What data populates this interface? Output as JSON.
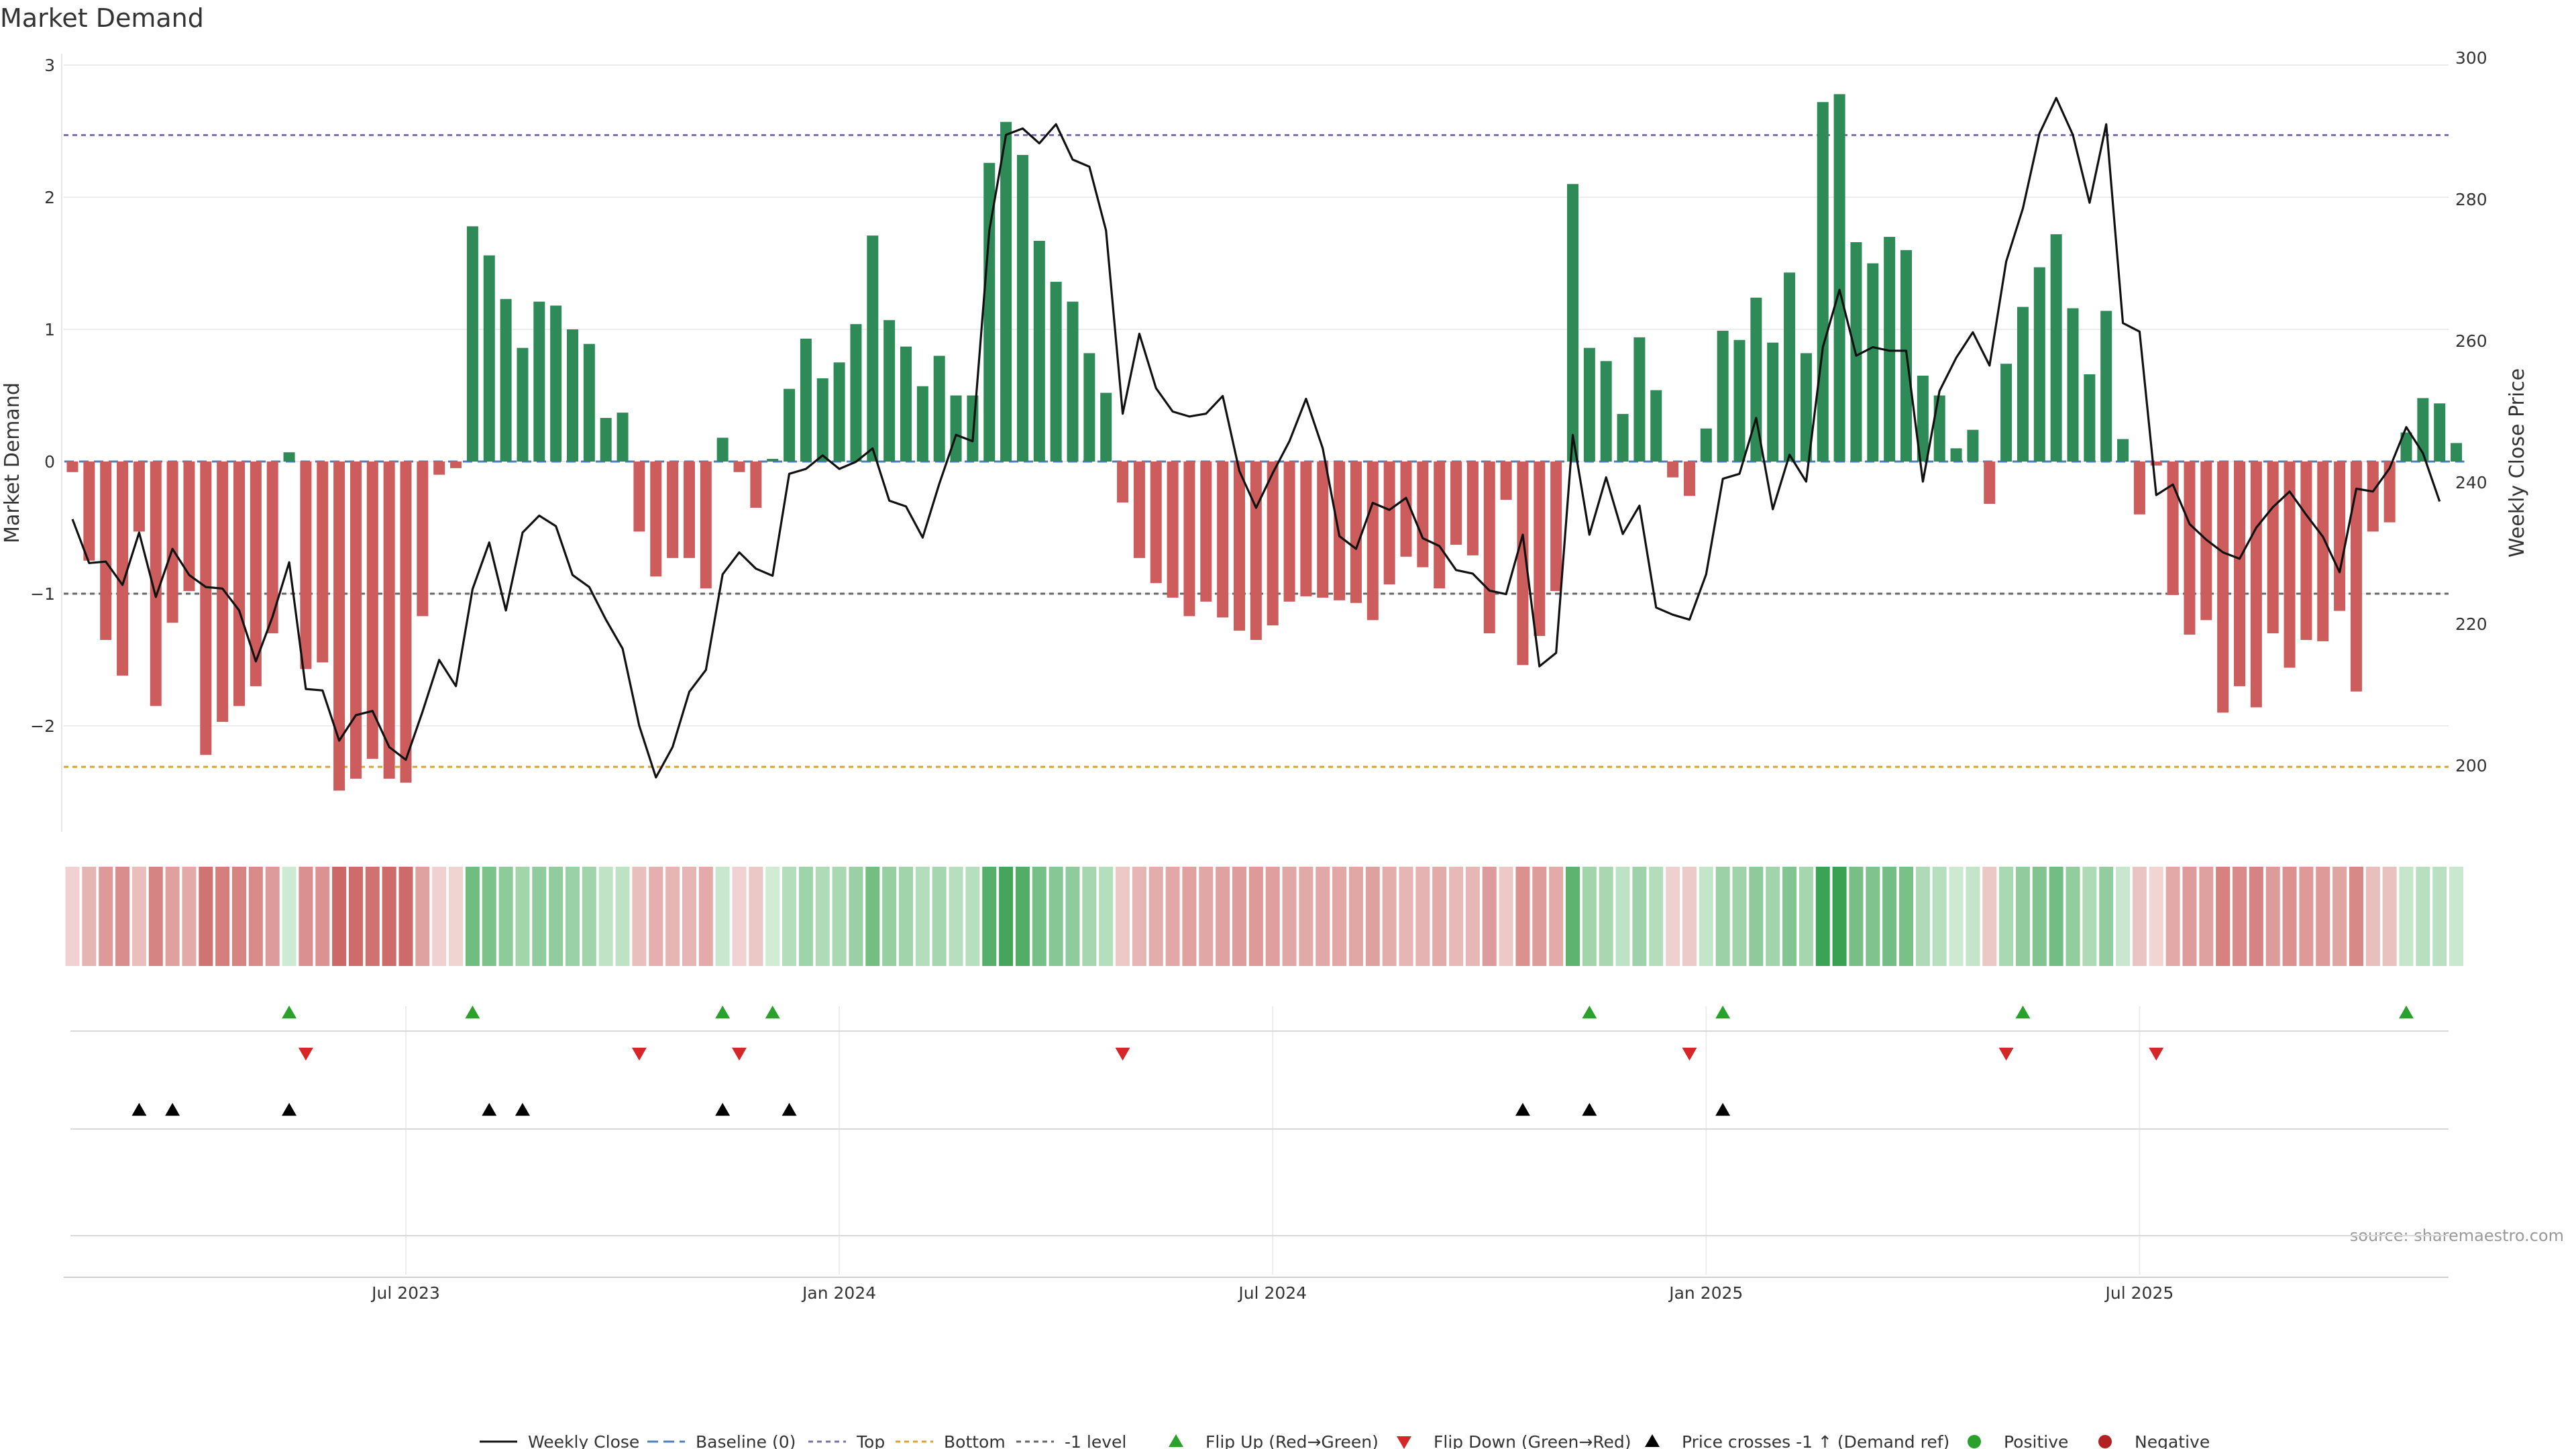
{
  "chart_data": {
    "type": "bar",
    "title": "Market Demand",
    "ylabel": "Market Demand",
    "y2label": "Weekly Close Price",
    "source": "source: sharemaestro.com",
    "ylim": [
      -2.78,
      3.0
    ],
    "y2lim": [
      193.5,
      301.0
    ],
    "yticks": [
      3,
      2,
      1,
      0,
      -1,
      -2
    ],
    "ytick_labels": [
      "3",
      "2",
      "1",
      "0",
      "−1",
      "−2"
    ],
    "y2ticks": [
      300,
      280,
      260,
      240,
      220,
      200
    ],
    "y2tick_labels": [
      "300",
      "280",
      "260",
      "240",
      "220",
      "200"
    ],
    "xticks": [
      {
        "week": 20,
        "label": "Jul 2023"
      },
      {
        "week": 46,
        "label": "Jan 2024"
      },
      {
        "week": 72,
        "label": "Jul 2024"
      },
      {
        "week": 98,
        "label": "Jan 2025"
      },
      {
        "week": 124,
        "label": "Jul 2025"
      }
    ],
    "reference_lines": {
      "top": 2.47,
      "bottom": -2.31,
      "minus_one": -1.0,
      "baseline": 0
    },
    "colors": {
      "positive": "#2e8b57",
      "negative": "#cd5c5c",
      "close": "#111111",
      "top": "#7b6fa6",
      "bottom": "#e0a030",
      "minus_one": "#666666",
      "baseline": "#4a7fc1",
      "flip_up": "#2ca02c",
      "flip_down": "#d62728",
      "cross": "#000000",
      "positive_dot": "#2ca02c",
      "negative_dot": "#b22222"
    },
    "demand": [
      -0.08,
      -0.75,
      -1.35,
      -1.62,
      -0.53,
      -1.85,
      -1.22,
      -0.98,
      -2.22,
      -1.97,
      -1.85,
      -1.7,
      -1.3,
      0.07,
      -1.57,
      -1.52,
      -2.49,
      -2.4,
      -2.25,
      -2.4,
      -2.43,
      -1.17,
      -0.1,
      -0.05,
      1.78,
      1.56,
      1.23,
      0.86,
      1.21,
      1.18,
      1.0,
      0.89,
      0.33,
      0.37,
      -0.53,
      -0.87,
      -0.73,
      -0.73,
      -0.96,
      0.18,
      -0.08,
      -0.35,
      0.02,
      0.55,
      0.93,
      0.63,
      0.75,
      1.04,
      1.71,
      1.07,
      0.87,
      0.57,
      0.8,
      0.5,
      0.5,
      2.26,
      2.57,
      2.32,
      1.67,
      1.36,
      1.21,
      0.82,
      0.52,
      -0.31,
      -0.73,
      -0.92,
      -1.03,
      -1.17,
      -1.06,
      -1.18,
      -1.28,
      -1.35,
      -1.24,
      -1.06,
      -1.02,
      -1.03,
      -1.05,
      -1.07,
      -1.2,
      -0.93,
      -0.72,
      -0.8,
      -0.96,
      -0.63,
      -0.71,
      -1.3,
      -0.29,
      -1.54,
      -1.32,
      -0.98,
      2.1,
      0.86,
      0.76,
      0.36,
      0.94,
      0.54,
      -0.12,
      -0.26,
      0.25,
      0.99,
      0.92,
      1.24,
      0.9,
      1.43,
      0.82,
      2.72,
      2.78,
      1.66,
      1.5,
      1.7,
      1.6,
      0.65,
      0.5,
      0.1,
      0.24,
      -0.32,
      0.74,
      1.17,
      1.47,
      1.72,
      1.16,
      0.66,
      1.14,
      0.17,
      -0.4,
      -0.03,
      -1.01,
      -1.31,
      -1.2,
      -1.9,
      -1.7,
      -1.86,
      -1.3,
      -1.56,
      -1.35,
      -1.36,
      -1.13,
      -1.74,
      -0.53,
      -0.46,
      0.22,
      0.48,
      0.44,
      0.14
    ],
    "weekly_close": [
      234.8,
      228.6,
      228.8,
      225.5,
      232.9,
      223.8,
      230.6,
      226.9,
      225.2,
      225.0,
      221.9,
      214.7,
      221.0,
      228.7,
      210.8,
      210.6,
      203.5,
      207.1,
      207.7,
      202.6,
      200.8,
      207.6,
      214.9,
      211.2,
      224.9,
      231.5,
      221.9,
      232.9,
      235.3,
      233.8,
      226.9,
      225.2,
      220.6,
      216.5,
      205.6,
      198.3,
      202.6,
      210.4,
      213.5,
      227.0,
      230.1,
      227.8,
      226.8,
      241.2,
      241.9,
      243.8,
      241.9,
      242.9,
      244.8,
      237.4,
      236.6,
      232.2,
      239.8,
      246.7,
      245.8,
      275.6,
      289.1,
      290.0,
      287.9,
      290.6,
      285.6,
      284.6,
      275.6,
      249.7,
      261.0,
      253.3,
      250.0,
      249.3,
      249.7,
      252.2,
      241.6,
      236.4,
      241.3,
      245.8,
      251.8,
      244.8,
      232.4,
      230.6,
      237.1,
      236.1,
      237.8,
      232.1,
      231.0,
      227.6,
      227.1,
      224.7,
      224.2,
      232.6,
      214.0,
      215.9,
      246.7,
      232.6,
      240.7,
      232.7,
      236.7,
      222.3,
      221.3,
      220.6,
      227.0,
      240.5,
      241.2,
      249.1,
      236.2,
      243.9,
      240.1,
      259.1,
      267.2,
      257.9,
      259.1,
      258.6,
      258.6,
      240.1,
      252.9,
      257.6,
      261.2,
      256.5,
      271.2,
      278.7,
      289.3,
      294.3,
      289.1,
      279.5,
      290.6,
      262.5,
      261.3,
      238.2,
      239.7,
      234.1,
      231.9,
      230.1,
      229.2,
      233.6,
      236.5,
      238.7,
      235.4,
      232.3,
      227.3,
      239.1,
      238.7,
      242.0,
      247.8,
      244.1,
      237.3
    ]
  },
  "indicator_rows": {
    "flip_up": [
      13,
      24,
      39,
      42,
      91,
      99,
      117,
      140
    ],
    "flip_down": [
      14,
      34,
      40,
      63,
      97,
      116,
      125
    ],
    "price_crosses": [
      4,
      6,
      13,
      25,
      27,
      39,
      43,
      87,
      91,
      99
    ]
  },
  "legend": [
    {
      "key": "close",
      "label": "Weekly Close"
    },
    {
      "key": "baseline",
      "label": "Baseline (0)"
    },
    {
      "key": "top",
      "label": "Top"
    },
    {
      "key": "bottom",
      "label": "Bottom"
    },
    {
      "key": "minus_one",
      "label": "-1 level"
    },
    {
      "key": "flip_up",
      "label": "Flip Up (Red→Green)"
    },
    {
      "key": "flip_down",
      "label": "Flip Down (Green→Red)"
    },
    {
      "key": "cross",
      "label": "Price crosses -1 ↑ (Demand ref)"
    },
    {
      "key": "positive_dot",
      "label": "Positive"
    },
    {
      "key": "negative_dot",
      "label": "Negative"
    }
  ]
}
